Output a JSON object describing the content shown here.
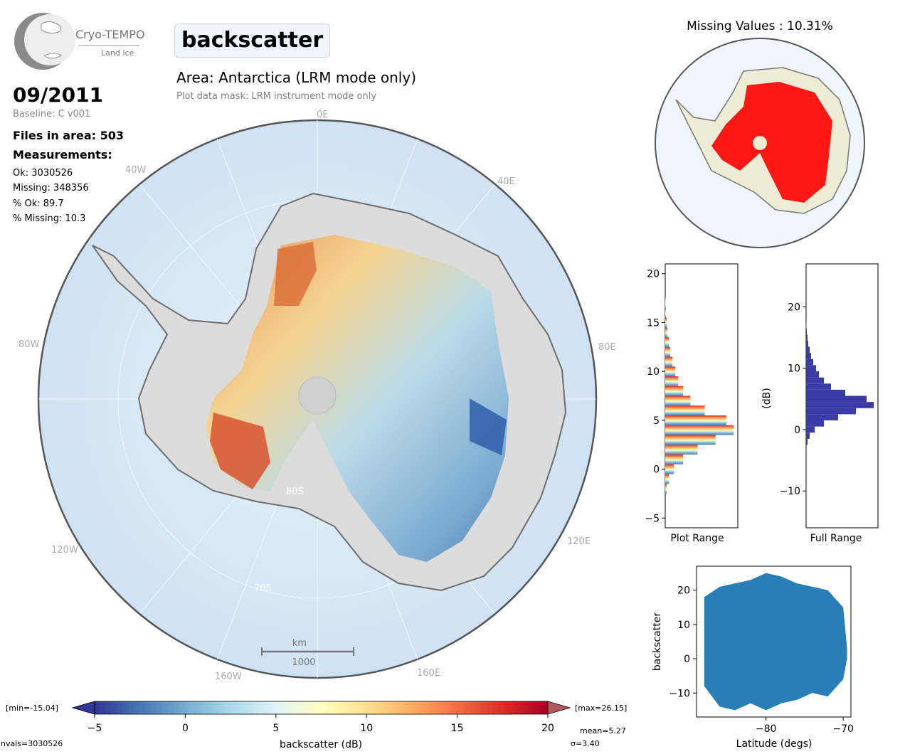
{
  "logo": {
    "name": "Cryo-TEMPO",
    "sub": "Land Ice"
  },
  "header": {
    "variable": "backscatter",
    "area": "Area: Antarctica (LRM mode only)",
    "mask_note": "Plot data mask: LRM instrument mode only",
    "date": "09/2011",
    "baseline": "Baseline: C v001",
    "files": "Files in area: 503",
    "measurements_heading": "Measurements:",
    "stats": [
      "Ok: 3030526",
      "Missing: 348356",
      "% Ok: 89.7",
      "% Missing: 10.3"
    ]
  },
  "map": {
    "lon_labels": [
      "0E",
      "40E",
      "80E",
      "120E",
      "160E",
      "160W",
      "120W",
      "80W",
      "40W"
    ],
    "lat_labels": [
      "80S",
      "70S"
    ],
    "scale_unit": "km",
    "scale_value": "1000"
  },
  "inset": {
    "title": "Missing Values : 10.31%"
  },
  "colorbar": {
    "label": "backscatter (dB)",
    "min_label": "[min=-15.04]",
    "max_label": "[max=26.15]",
    "ticks": [
      "−5",
      "0",
      "5",
      "10",
      "15",
      "20"
    ],
    "mean": "mean=5.27",
    "sigma": "σ=3.40",
    "nvals": "nvals=3030526"
  },
  "colors": {
    "accent_dark": "#313695",
    "accent_red": "#a50026",
    "scatter": "#1f77b4",
    "hist_full": "#3b3ba8",
    "missing": "#ff0000"
  },
  "chart_data": [
    {
      "type": "bar",
      "title": "",
      "xlabel": "Plot Range",
      "ylabel": "",
      "orientation": "horizontal-histogram",
      "ylim": [
        -6,
        21
      ],
      "yticks": [
        "−5",
        "0",
        "5",
        "10",
        "15",
        "20"
      ],
      "bins_center": [
        -2,
        -1,
        0,
        1,
        2,
        3,
        4,
        5,
        6,
        7,
        8,
        9,
        10,
        11,
        12,
        13,
        14,
        15,
        16,
        17
      ],
      "counts": [
        0.02,
        0.05,
        0.12,
        0.25,
        0.45,
        0.7,
        0.95,
        0.85,
        0.55,
        0.35,
        0.25,
        0.18,
        0.14,
        0.1,
        0.07,
        0.05,
        0.03,
        0.02,
        0.01,
        0.005
      ]
    },
    {
      "type": "bar",
      "title": "",
      "xlabel": "Full Range",
      "ylabel": "(dB)",
      "orientation": "horizontal-histogram",
      "ylim": [
        -16,
        27
      ],
      "yticks": [
        "−10",
        "0",
        "10",
        "20"
      ],
      "bins_center": [
        -2,
        -1,
        0,
        1,
        2,
        3,
        4,
        5,
        6,
        7,
        8,
        9,
        10,
        11,
        12,
        13,
        14,
        15,
        16,
        17
      ],
      "counts": [
        0.02,
        0.05,
        0.12,
        0.25,
        0.45,
        0.7,
        0.95,
        0.85,
        0.55,
        0.35,
        0.25,
        0.18,
        0.14,
        0.1,
        0.07,
        0.05,
        0.03,
        0.02,
        0.01,
        0.005
      ]
    },
    {
      "type": "scatter",
      "title": "",
      "xlabel": "Latitude (degs)",
      "ylabel": "backscatter",
      "xlim": [
        -89,
        -69
      ],
      "ylim": [
        -17,
        27
      ],
      "xticks": [
        "−80",
        "−70"
      ],
      "yticks": [
        "−10",
        "0",
        "10",
        "20"
      ],
      "envelope": {
        "latitude": [
          -88,
          -86,
          -84,
          -82,
          -80,
          -78,
          -76,
          -74,
          -72,
          -70,
          -69.5
        ],
        "upper": [
          18,
          21,
          22,
          23,
          25,
          24,
          22,
          21,
          20,
          15,
          3
        ],
        "lower": [
          -8,
          -14,
          -15,
          -13,
          -15,
          -13,
          -12,
          -10,
          -11,
          -6,
          0
        ]
      }
    }
  ]
}
